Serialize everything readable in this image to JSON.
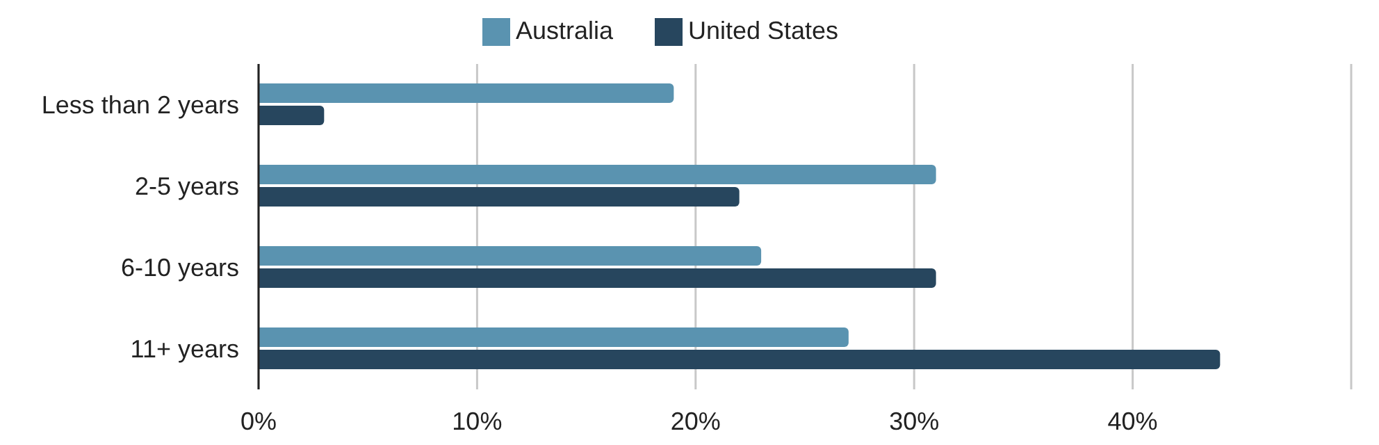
{
  "chart_data": {
    "type": "bar",
    "orientation": "horizontal",
    "categories": [
      "Less than 2 years",
      "2-5 years",
      "6-10 years",
      "11+ years"
    ],
    "series": [
      {
        "name": "Australia",
        "color": "#5a93b0",
        "values": [
          19,
          31,
          23,
          27
        ]
      },
      {
        "name": "United States",
        "color": "#27465e",
        "values": [
          3,
          22,
          31,
          44
        ]
      }
    ],
    "xlim": [
      0,
      50
    ],
    "xticks": [
      {
        "value": 0,
        "label": "0%"
      },
      {
        "value": 10,
        "label": "10%"
      },
      {
        "value": 20,
        "label": "20%"
      },
      {
        "value": 30,
        "label": "30%"
      },
      {
        "value": 40,
        "label": "40%"
      },
      {
        "value": 50,
        "label": null
      }
    ],
    "grid": "x",
    "legend": "top"
  }
}
